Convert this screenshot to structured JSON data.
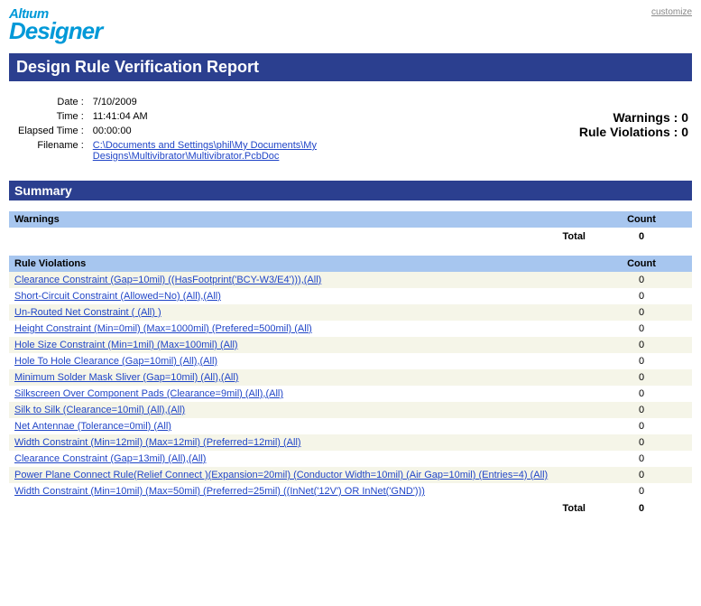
{
  "top": {
    "logo_top": "Altıum",
    "logo_bot": "Designer",
    "customize": "customize"
  },
  "title": "Design Rule Verification Report",
  "meta": {
    "date_label": "Date :",
    "time_label": "Time :",
    "elapsed_label": "Elapsed Time :",
    "filename_label": "Filename :",
    "date": "7/10/2009",
    "time": "11:41:04 AM",
    "elapsed": "00:00:00",
    "filename": "C:\\Documents and Settings\\phil\\My Documents\\My Designs\\Multivibrator\\Multivibrator.PcbDoc"
  },
  "stats": {
    "warnings_label": "Warnings :",
    "warnings_count": "0",
    "violations_label": "Rule Violations :",
    "violations_count": "0"
  },
  "summary_hdr": "Summary",
  "warnings_table": {
    "hdr_name": "Warnings",
    "hdr_count": "Count",
    "total_label": "Total",
    "total_value": "0"
  },
  "violations_table": {
    "hdr_name": "Rule Violations",
    "hdr_count": "Count",
    "total_label": "Total",
    "total_value": "0",
    "rows": [
      {
        "name": "Clearance Constraint (Gap=10mil) ((HasFootprint('BCY-W3/E4'))),(All)",
        "count": "0"
      },
      {
        "name": "Short-Circuit Constraint (Allowed=No) (All),(All)",
        "count": "0"
      },
      {
        "name": "Un-Routed Net Constraint ( (All) )",
        "count": "0"
      },
      {
        "name": "Height Constraint (Min=0mil) (Max=1000mil) (Prefered=500mil) (All)",
        "count": "0"
      },
      {
        "name": "Hole Size Constraint (Min=1mil) (Max=100mil) (All)",
        "count": "0"
      },
      {
        "name": "Hole To Hole Clearance (Gap=10mil) (All),(All)",
        "count": "0"
      },
      {
        "name": "Minimum Solder Mask Sliver (Gap=10mil) (All),(All)",
        "count": "0"
      },
      {
        "name": "Silkscreen Over Component Pads (Clearance=9mil) (All),(All)",
        "count": "0"
      },
      {
        "name": "Silk to Silk (Clearance=10mil) (All),(All)",
        "count": "0"
      },
      {
        "name": "Net Antennae (Tolerance=0mil) (All)",
        "count": "0"
      },
      {
        "name": "Width Constraint (Min=12mil) (Max=12mil) (Preferred=12mil) (All)",
        "count": "0"
      },
      {
        "name": "Clearance Constraint (Gap=13mil) (All),(All)",
        "count": "0"
      },
      {
        "name": "Power Plane Connect Rule(Relief Connect )(Expansion=20mil) (Conductor Width=10mil) (Air Gap=10mil) (Entries=4) (All)",
        "count": "0"
      },
      {
        "name": "Width Constraint (Min=10mil) (Max=50mil) (Preferred=25mil) ((InNet('12V') OR InNet('GND')))",
        "count": "0"
      }
    ]
  }
}
